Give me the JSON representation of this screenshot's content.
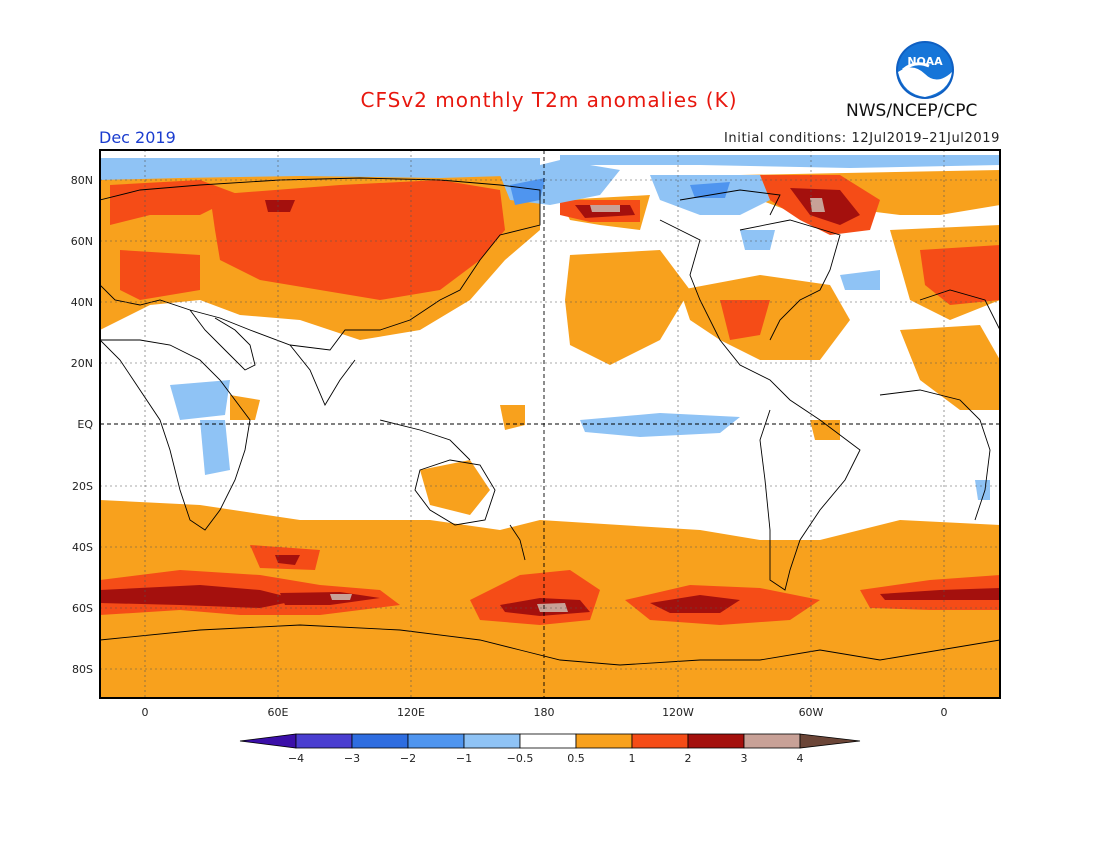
{
  "header": {
    "title": "CFSv2 monthly T2m anomalies (K)",
    "month": "Dec 2019",
    "initial_conditions": "Initial conditions: 12Jul2019–21Jul2019",
    "agency": "NWS/NCEP/CPC",
    "logo_text": "NOAA"
  },
  "map": {
    "lat_labels": [
      "80N",
      "60N",
      "40N",
      "20N",
      "EQ",
      "20S",
      "40S",
      "60S",
      "80S"
    ],
    "lon_labels": [
      "0",
      "60E",
      "120E",
      "180",
      "120W",
      "60W",
      "0"
    ]
  },
  "legend": {
    "labels": [
      "−4",
      "−3",
      "−2",
      "−1",
      "−0.5",
      "0.5",
      "1",
      "2",
      "3",
      "4"
    ],
    "colors": [
      "#3b0fa8",
      "#4a3ed0",
      "#2e6de0",
      "#4f95ef",
      "#8fc3f5",
      "#ffffff",
      "#f8a11d",
      "#f54c17",
      "#a4100d",
      "#c8a197",
      "#6b4537"
    ]
  },
  "colors": {
    "title": "#e8170e",
    "month": "#1a3ccf",
    "warm1": "#f8a11d",
    "warm2": "#f54c17",
    "warm3": "#a4100d",
    "warm4": "#c8a197",
    "cool1": "#8fc3f5",
    "cool2": "#4f95ef"
  }
}
